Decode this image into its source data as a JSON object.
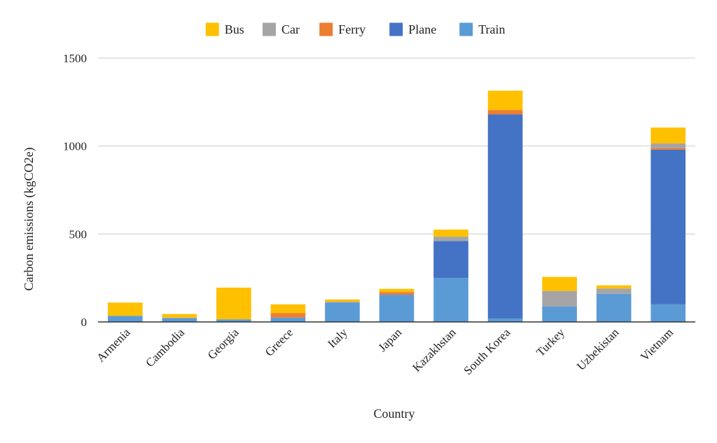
{
  "chart_data": {
    "type": "bar",
    "stacked": true,
    "xlabel": "Country",
    "ylabel": "Carbon emissions (kgCO2e)",
    "ylim": [
      0,
      1500
    ],
    "yticks": [
      0,
      500,
      1000,
      1500
    ],
    "grid": true,
    "legend_position": "top",
    "categories": [
      "Armenia",
      "Cambodia",
      "Georgia",
      "Greece",
      "Italy",
      "Japan",
      "Kazakhstan",
      "South Korea",
      "Turkey",
      "Uzbekistan",
      "Vietnam"
    ],
    "series": [
      {
        "name": "Train",
        "color": "#5b9bd5",
        "values": [
          35,
          20,
          15,
          25,
          110,
          155,
          250,
          20,
          88,
          160,
          100
        ]
      },
      {
        "name": "Plane",
        "color": "#4472c4",
        "values": [
          0,
          0,
          0,
          0,
          0,
          0,
          210,
          1160,
          0,
          0,
          880
        ]
      },
      {
        "name": "Ferry",
        "color": "#ed7d31",
        "values": [
          0,
          0,
          0,
          25,
          0,
          15,
          0,
          25,
          0,
          0,
          10
        ]
      },
      {
        "name": "Car",
        "color": "#a5a5a5",
        "values": [
          0,
          5,
          0,
          0,
          5,
          0,
          25,
          0,
          88,
          30,
          25
        ]
      },
      {
        "name": "Bus",
        "color": "#ffc000",
        "values": [
          75,
          20,
          180,
          50,
          13,
          18,
          40,
          110,
          80,
          18,
          90
        ]
      }
    ],
    "legend_order": [
      "Bus",
      "Car",
      "Ferry",
      "Plane",
      "Train"
    ]
  }
}
